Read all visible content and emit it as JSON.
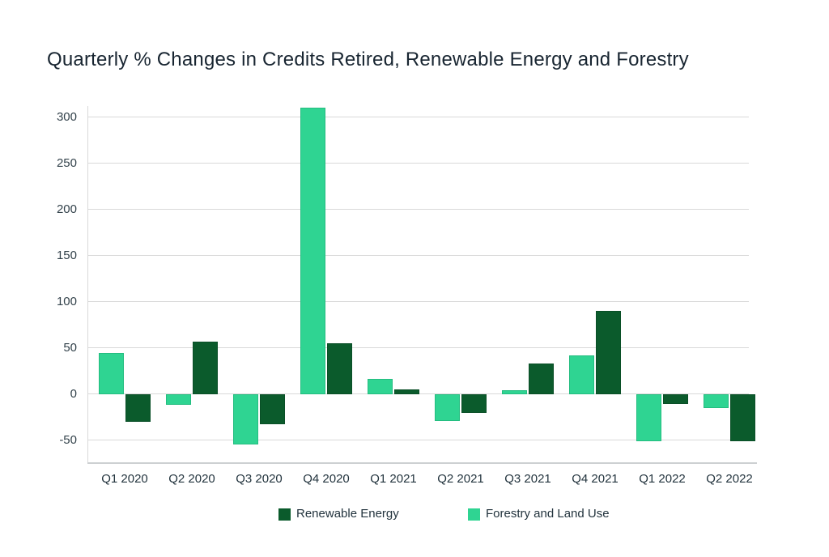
{
  "chart_data": {
    "type": "bar",
    "title": "Quarterly % Changes in Credits Retired, Renewable Energy and Forestry",
    "categories": [
      "Q1 2020",
      "Q2 2020",
      "Q3 2020",
      "Q4 2020",
      "Q1 2021",
      "Q2 2021",
      "Q3 2021",
      "Q4 2021",
      "Q1 2022",
      "Q2 2022"
    ],
    "series": [
      {
        "name": "Forestry and Land Use",
        "color": "#2fd492",
        "border_color": "#24bd80",
        "values": [
          44,
          -12,
          -55,
          310,
          16,
          -29,
          4,
          42,
          -51,
          -15
        ]
      },
      {
        "name": "Renewable Energy",
        "color": "#0b5b2c",
        "border_color": "#0a4f27",
        "values": [
          -30,
          57,
          -33,
          55,
          5,
          -21,
          33,
          90,
          -11,
          -51
        ]
      }
    ],
    "legend": [
      {
        "label": "Renewable Energy",
        "color": "#0b5b2c"
      },
      {
        "label": "Forestry and Land Use",
        "color": "#2fd492"
      }
    ],
    "legend_position": "bottom",
    "grid": true,
    "y_ticks": [
      -50,
      0,
      50,
      100,
      150,
      200,
      250,
      300
    ],
    "ylim": [
      -75,
      312
    ],
    "xlabel": "",
    "ylabel": ""
  },
  "colors": {
    "title_text": "#182531",
    "axis_text": "#33424b",
    "gridline": "#d9d9d9",
    "axis_line": "#cdd0d2",
    "background": "#ffffff"
  }
}
